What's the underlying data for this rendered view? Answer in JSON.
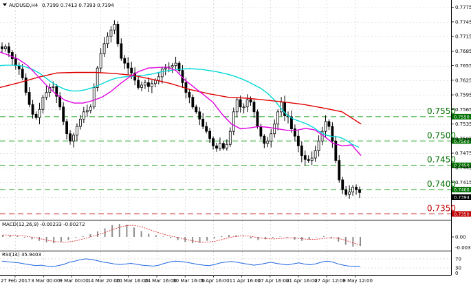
{
  "header": {
    "title": "AUDUSD,H4",
    "ohlc": "0.7399 0.7413 0.7393 0.7394"
  },
  "colors": {
    "grid": "#c8c8c8",
    "candle": "#000000",
    "ma_fast": "#00d8d8",
    "ma_slow": "#e00000",
    "ma_mid": "#e000e0",
    "level_line": "#18a018",
    "level_green": "#007000",
    "level_red": "#c00000",
    "rsi_line": "#1e64e0",
    "macd_signal": "#e03030"
  },
  "main_axis": {
    "labels": [
      "0.7775",
      "0.7745",
      "0.7715",
      "0.7685",
      "0.7655",
      "0.7625",
      "0.7595",
      "0.7565",
      "0.7535",
      "0.7505",
      "0.7475",
      "0.7445",
      "0.7415",
      "0.7385"
    ],
    "current_price": "0.7394"
  },
  "levels": [
    {
      "text": "0.7550",
      "tag": "0.7550",
      "style": "green"
    },
    {
      "text": "0.7500",
      "tag": "0.7500",
      "style": "green"
    },
    {
      "text": "0.7450",
      "tag": "0.7450",
      "style": "green"
    },
    {
      "text": "0.7400",
      "tag": "0.7400",
      "style": "green"
    },
    {
      "text": "0.7350",
      "tag": "0.7350",
      "style": "red"
    }
  ],
  "macd": {
    "label": "MACD(12,26,9) -0.00233 -0.00272",
    "axis": [
      "0.00",
      "-0.00356"
    ]
  },
  "rsi": {
    "label": "RSI(14) 35.9403",
    "axis": [
      "70",
      "30",
      "0"
    ]
  },
  "time_axis": [
    "27 Feb 2017",
    "3 Mar 00:00",
    "9 Mar 00:00",
    "14 Mar 20:00",
    "20 Mar 16:00",
    "24 Mar 16:00",
    "30 Mar 16:00",
    "5 Apr 16:00",
    "11 Apr 16:00",
    "17 Apr 16:00",
    "21 Apr 16:00",
    "27 Apr 12:00",
    "3 May 12:00"
  ],
  "chart_data": {
    "type": "candlestick",
    "symbol": "AUDUSD",
    "timeframe": "H4",
    "ylim": [
      0.7338,
      0.779
    ],
    "close": [
      0.769,
      0.7694,
      0.7682,
      0.7669,
      0.7655,
      0.7648,
      0.763,
      0.76,
      0.7575,
      0.7555,
      0.7548,
      0.7565,
      0.759,
      0.76,
      0.761,
      0.7612,
      0.7592,
      0.757,
      0.754,
      0.7515,
      0.75,
      0.7512,
      0.753,
      0.7545,
      0.756,
      0.7563,
      0.757,
      0.761,
      0.765,
      0.768,
      0.77,
      0.7715,
      0.7728,
      0.774,
      0.77,
      0.767,
      0.766,
      0.765,
      0.764,
      0.7625,
      0.761,
      0.7615,
      0.762,
      0.7612,
      0.7618,
      0.7625,
      0.7632,
      0.7648,
      0.765,
      0.7652,
      0.7655,
      0.766,
      0.7645,
      0.762,
      0.76,
      0.759,
      0.757,
      0.756,
      0.7545,
      0.753,
      0.752,
      0.7505,
      0.749,
      0.7485,
      0.7495,
      0.7485,
      0.7493,
      0.752,
      0.756,
      0.7585,
      0.757,
      0.757,
      0.7585,
      0.758,
      0.756,
      0.753,
      0.751,
      0.7495,
      0.75,
      0.7515,
      0.7535,
      0.756,
      0.758,
      0.7552,
      0.755,
      0.7525,
      0.751,
      0.749,
      0.747,
      0.7462,
      0.746,
      0.7465,
      0.748,
      0.75,
      0.752,
      0.754,
      0.753,
      0.75,
      0.746,
      0.742,
      0.74,
      0.739,
      0.7395,
      0.7405,
      0.74,
      0.7394
    ],
    "ma_fast": [
      0.7655,
      0.7656,
      0.7656,
      0.7655,
      0.7652,
      0.7647,
      0.764,
      0.763,
      0.762,
      0.7612,
      0.7606,
      0.7603,
      0.7603,
      0.7605,
      0.7609,
      0.7614,
      0.762,
      0.7626,
      0.763,
      0.7632,
      0.7633,
      0.7634,
      0.7635,
      0.7637,
      0.764,
      0.7643,
      0.7645,
      0.7647,
      0.7648,
      0.7649,
      0.7648,
      0.7647,
      0.7645,
      0.7643,
      0.764,
      0.7637,
      0.7633,
      0.7628,
      0.7622,
      0.7615,
      0.7608,
      0.7598,
      0.7585,
      0.7568,
      0.7553,
      0.7545,
      0.754,
      0.7535,
      0.7528,
      0.7519,
      0.7512,
      0.7509,
      0.7508,
      0.7502,
      0.7493,
      0.7487
    ],
    "ma_mid": [
      0.7683,
      0.7676,
      0.7668,
      0.7655,
      0.7635,
      0.7615,
      0.7597,
      0.7584,
      0.7578,
      0.7578,
      0.7583,
      0.759,
      0.7602,
      0.7618,
      0.7632,
      0.7643,
      0.765,
      0.7651,
      0.7652,
      0.7645,
      0.7625,
      0.761,
      0.7595,
      0.758,
      0.7555,
      0.7535,
      0.7525,
      0.7527,
      0.753,
      0.7528,
      0.7525,
      0.7522,
      0.7522,
      0.7526,
      0.7523,
      0.751,
      0.7495,
      0.749,
      0.7492,
      0.747
    ],
    "ma_slow": [
      0.761,
      0.762,
      0.7631,
      0.764,
      0.7641,
      0.7641,
      0.7639,
      0.7635,
      0.7627,
      0.7618,
      0.7606,
      0.7597,
      0.759,
      0.7588,
      0.7584,
      0.758,
      0.7575,
      0.7568,
      0.756,
      0.7535
    ],
    "levels": [
      0.755,
      0.75,
      0.745,
      0.74,
      0.735
    ],
    "x_labels": [
      "27 Feb 2017",
      "3 Mar 00:00",
      "9 Mar 00:00",
      "14 Mar 20:00",
      "20 Mar 16:00",
      "24 Mar 16:00",
      "30 Mar 16:00",
      "5 Apr 16:00",
      "11 Apr 16:00",
      "17 Apr 16:00",
      "21 Apr 16:00",
      "27 Apr 12:00",
      "3 May 12:00"
    ],
    "macd_hist": [
      0.0005,
      0.0004,
      0.0002,
      -0.0002,
      -0.0006,
      -0.001,
      -0.0014,
      -0.0016,
      -0.0013,
      -0.0008,
      -0.0002,
      0.0002,
      0.0007,
      0.0014,
      0.0022,
      0.003,
      0.0033,
      0.0031,
      0.0024,
      0.0015,
      0.0008,
      0.0004,
      0.0001,
      -0.0003,
      -0.0008,
      -0.0013,
      -0.0016,
      -0.0015,
      -0.001,
      -0.0004,
      0.0002,
      0.0005,
      0.0004,
      0.0001,
      -0.0004,
      -0.0008,
      -0.0006,
      -0.0003,
      0.0001,
      -0.0002,
      -0.0007,
      -0.001,
      -0.0006,
      -0.0001,
      0.0002,
      -0.0004,
      -0.0012,
      -0.002,
      -0.0025,
      -0.0023
    ],
    "rsi_values": [
      60,
      57,
      55,
      52,
      48,
      44,
      40,
      42,
      38,
      35,
      40,
      45,
      55,
      60,
      66,
      70,
      67,
      62,
      56,
      52,
      48,
      45,
      47,
      50,
      46,
      42,
      40,
      38,
      42,
      50,
      56,
      60,
      58,
      55,
      50,
      45,
      42,
      40,
      45,
      52,
      56,
      58,
      55,
      50,
      46,
      42,
      45,
      50,
      55,
      50,
      46,
      43,
      48,
      52,
      47,
      44,
      48,
      55,
      60,
      56,
      48,
      42,
      38,
      36,
      36
    ]
  }
}
